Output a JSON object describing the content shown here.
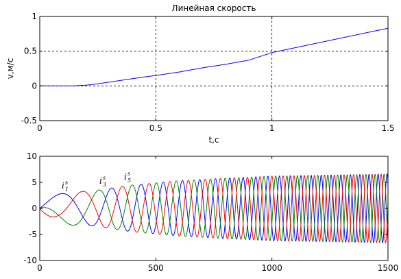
{
  "chart_data": [
    {
      "type": "line",
      "title": "Линейная скорость",
      "xlabel": "t,c",
      "ylabel": "v,м/с",
      "xlim": [
        0,
        1.5
      ],
      "ylim": [
        -0.5,
        1
      ],
      "xticks": [
        "0",
        "0.5",
        "1",
        "1.5"
      ],
      "yticks": [
        "-0.5",
        "0",
        "0.5",
        "1"
      ],
      "grid": "dashed at x=0.5, x=1, y=0, y=0.5",
      "series": [
        {
          "color": "#0000ff",
          "x": [
            0,
            0.1,
            0.15,
            0.2,
            0.25,
            0.3,
            0.35,
            0.4,
            0.45,
            0.5,
            0.6,
            0.7,
            0.8,
            0.9,
            1.0,
            1.1,
            1.2,
            1.3,
            1.4,
            1.5
          ],
          "y": [
            0,
            0,
            0.002,
            0.01,
            0.03,
            0.055,
            0.08,
            0.105,
            0.13,
            0.15,
            0.2,
            0.26,
            0.31,
            0.37,
            0.48,
            0.55,
            0.62,
            0.69,
            0.76,
            0.83
          ]
        }
      ]
    },
    {
      "type": "line",
      "xlim": [
        0,
        1500
      ],
      "ylim": [
        -10,
        10
      ],
      "xticks": [
        "0",
        "500",
        "1000",
        "1500"
      ],
      "yticks": [
        "-10",
        "-5",
        "0",
        "5",
        "10"
      ],
      "grid": false,
      "description_of_waves": "three-phase sinusoids with growing frequency; amplitude ~2.5 near start rising to ~6.5",
      "series": [
        {
          "label_main": "i",
          "label_sub": "1",
          "label_sup": "s",
          "color": "#0000ff",
          "phase_deg": 0
        },
        {
          "label_main": "i",
          "label_sub": "3",
          "label_sup": "s",
          "color": "#008000",
          "phase_deg": 120
        },
        {
          "label_main": "i",
          "label_sub": "5",
          "label_sup": "s",
          "color": "#ff0000",
          "phase_deg": -120
        }
      ],
      "amplitude": [
        [
          0,
          2.5
        ],
        [
          200,
          3.2
        ],
        [
          400,
          4.5
        ],
        [
          600,
          5.3
        ],
        [
          800,
          5.8
        ],
        [
          1000,
          6.2
        ],
        [
          1500,
          6.6
        ]
      ],
      "period": [
        [
          0,
          440
        ],
        [
          150,
          260
        ],
        [
          300,
          150
        ],
        [
          500,
          90
        ],
        [
          800,
          60
        ],
        [
          1100,
          45
        ],
        [
          1500,
          38
        ]
      ]
    }
  ]
}
